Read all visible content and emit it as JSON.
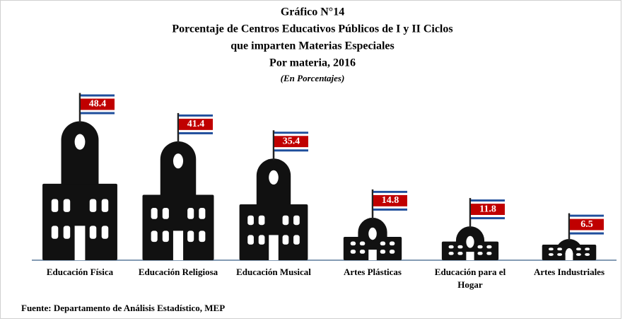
{
  "chart_data": {
    "type": "pictograph",
    "title": [
      "Gráfico N°14",
      "Porcentaje de Centros Educativos Públicos de I y II Ciclos",
      "que imparten Materias Especiales",
      "Por materia, 2016"
    ],
    "subtitle": "(En Porcentajes)",
    "categories": [
      "Educación Física",
      "Educación Religiosa",
      "Educación Musical",
      "Artes Plásticas",
      "Educación para el Hogar",
      "Artes Industriales"
    ],
    "values": [
      48.4,
      41.4,
      35.4,
      14.8,
      11.8,
      6.5
    ],
    "color": "#111111",
    "flag_colors": [
      "#1f4e9c",
      "#ffffff",
      "#c00000"
    ],
    "source": "Fuente: Departamento de Análisis Estadístico, MEP"
  }
}
